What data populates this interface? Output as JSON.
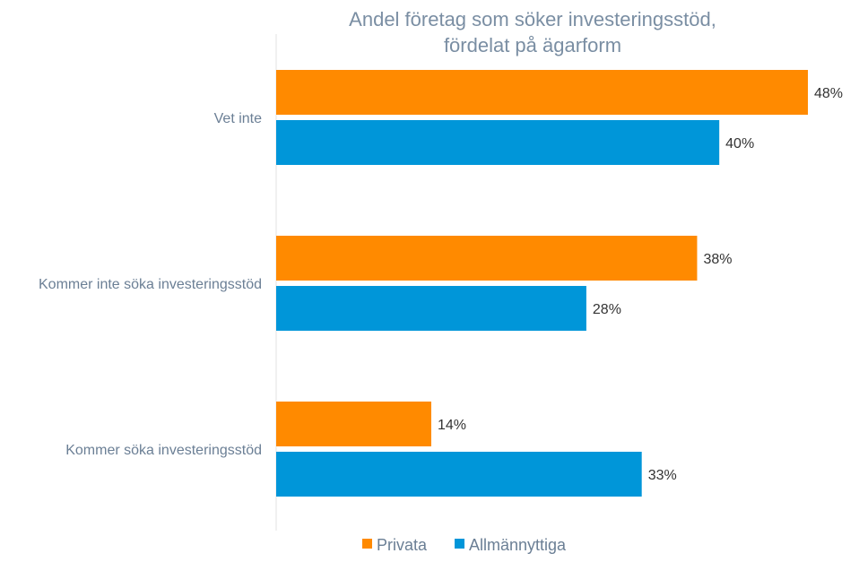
{
  "chart_data": {
    "type": "bar",
    "orientation": "horizontal",
    "title": [
      "Andel företag som söker investeringsstöd,",
      "fördelat på ägarform"
    ],
    "categories": [
      "Vet inte",
      "Kommer inte söka investeringsstöd",
      "Kommer söka investeringsstöd"
    ],
    "series": [
      {
        "name": "Privata",
        "color": "#ff8a00",
        "values": [
          48,
          38,
          14
        ],
        "labels": [
          "48%",
          "38%",
          "14%"
        ]
      },
      {
        "name": "Allmännyttiga",
        "color": "#0096d9",
        "values": [
          40,
          28,
          33
        ],
        "labels": [
          "40%",
          "28%",
          "33%"
        ]
      }
    ],
    "xlim": [
      0,
      48
    ],
    "grid": false,
    "legend_position": "bottom"
  }
}
